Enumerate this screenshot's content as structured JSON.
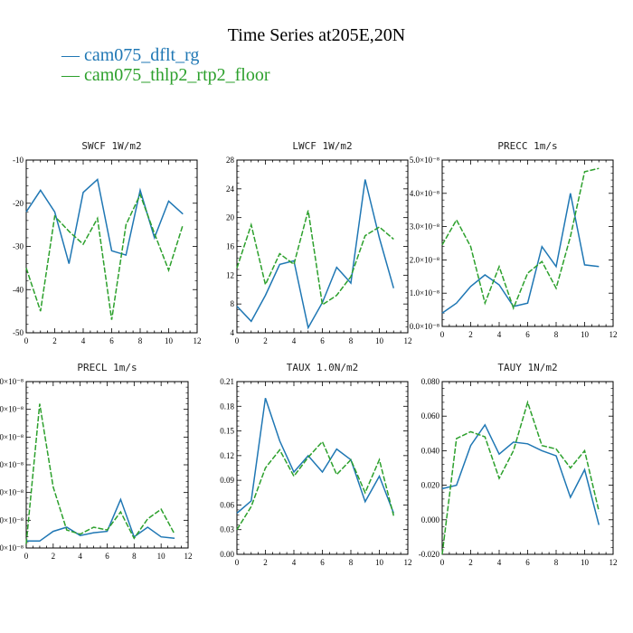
{
  "title": "Time Series at205E,20N",
  "legend": [
    {
      "label": "— cam075_dflt_rg",
      "color": "#1f77b4"
    },
    {
      "label": "— cam075_thlp2_rtp2_floor",
      "color": "#2ca02c"
    }
  ],
  "chart_data": [
    {
      "type": "line",
      "title": "SWCF  1W/m2",
      "xlim": [
        0,
        12
      ],
      "ylim": [
        -50,
        -10
      ],
      "xticks": [
        "0",
        "2",
        "4",
        "6",
        "8",
        "10",
        "12"
      ],
      "yticks": [
        {
          "v": -10,
          "label": "-10"
        },
        {
          "v": -20,
          "label": "-20"
        },
        {
          "v": -30,
          "label": "-30"
        },
        {
          "v": -40,
          "label": "-40"
        },
        {
          "v": -50,
          "label": "-50"
        }
      ],
      "x": [
        0,
        1,
        2,
        3,
        4,
        5,
        6,
        7,
        8,
        9,
        10,
        11
      ],
      "series": [
        {
          "name": "cam075_dflt_rg",
          "values": [
            -22,
            -17,
            -22,
            -34,
            -17.5,
            -14.5,
            -31,
            -32,
            -17,
            -28,
            -19.5,
            -22.5
          ]
        },
        {
          "name": "cam075_thlp2_rtp2_floor",
          "values": [
            -35,
            -45,
            -23,
            -26.5,
            -29.5,
            -23.5,
            -47,
            -25,
            -18,
            -27,
            -35.5,
            -25
          ]
        }
      ]
    },
    {
      "type": "line",
      "title": "LWCF  1W/m2",
      "xlim": [
        0,
        12
      ],
      "ylim": [
        4,
        28
      ],
      "xticks": [
        "0",
        "2",
        "4",
        "6",
        "8",
        "10",
        "12"
      ],
      "yticks": [
        {
          "v": 4,
          "label": "4"
        },
        {
          "v": 8,
          "label": "8"
        },
        {
          "v": 12,
          "label": "12"
        },
        {
          "v": 16,
          "label": "16"
        },
        {
          "v": 20,
          "label": "20"
        },
        {
          "v": 24,
          "label": "24"
        },
        {
          "v": 28,
          "label": "28"
        }
      ],
      "x": [
        0,
        1,
        2,
        3,
        4,
        5,
        6,
        7,
        8,
        9,
        10,
        11
      ],
      "series": [
        {
          "name": "cam075_dflt_rg",
          "values": [
            7.7,
            5.6,
            9.2,
            13.5,
            14,
            4.7,
            8.2,
            13.1,
            10.9,
            25.3,
            17.2,
            10.2
          ]
        },
        {
          "name": "cam075_thlp2_rtp2_floor",
          "values": [
            13,
            19,
            10.7,
            15,
            13.5,
            21,
            7.9,
            9.2,
            11.8,
            17.5,
            18.7,
            17
          ]
        }
      ]
    },
    {
      "type": "line",
      "title": "PRECC  1m/s",
      "xlim": [
        0,
        12
      ],
      "ylim": [
        0,
        5
      ],
      "xticks": [
        "0",
        "2",
        "4",
        "6",
        "8",
        "10",
        "12"
      ],
      "yticks": [
        {
          "v": 0,
          "label": "0.0×10⁻⁸"
        },
        {
          "v": 1,
          "label": "1.0×10⁻⁸"
        },
        {
          "v": 2,
          "label": "2.0×10⁻⁸"
        },
        {
          "v": 3,
          "label": "3.0×10⁻⁸"
        },
        {
          "v": 4,
          "label": "4.0×10⁻⁸"
        },
        {
          "v": 5,
          "label": "5.0×10⁻⁸"
        }
      ],
      "x": [
        0,
        1,
        2,
        3,
        4,
        5,
        6,
        7,
        8,
        9,
        10,
        11
      ],
      "series": [
        {
          "name": "cam075_dflt_rg",
          "values": [
            0.4,
            0.7,
            1.2,
            1.55,
            1.25,
            0.6,
            0.7,
            2.4,
            1.8,
            4,
            1.85,
            1.8
          ]
        },
        {
          "name": "cam075_thlp2_rtp2_floor",
          "values": [
            2.45,
            3.2,
            2.4,
            0.7,
            1.8,
            0.55,
            1.6,
            1.95,
            1.15,
            2.7,
            4.65,
            4.75
          ]
        }
      ]
    },
    {
      "type": "line",
      "title": "PRECL  1m/s",
      "xlim": [
        0,
        12
      ],
      "ylim": [
        0,
        6
      ],
      "xticks": [
        "0",
        "2",
        "4",
        "6",
        "8",
        "10",
        "12"
      ],
      "yticks": [
        {
          "v": 0,
          "label": "0×10⁻⁸"
        },
        {
          "v": 1,
          "label": "0×10⁻⁸"
        },
        {
          "v": 2,
          "label": "0×10⁻⁸"
        },
        {
          "v": 3,
          "label": "0×10⁻⁸"
        },
        {
          "v": 4,
          "label": "0×10⁻⁸"
        },
        {
          "v": 5,
          "label": "0×10⁻⁸"
        },
        {
          "v": 6,
          "label": "0×10⁻⁸"
        }
      ],
      "x": [
        0,
        1,
        2,
        3,
        4,
        5,
        6,
        7,
        8,
        9,
        10,
        11
      ],
      "series": [
        {
          "name": "cam075_dflt_rg",
          "values": [
            0.25,
            0.25,
            0.6,
            0.75,
            0.45,
            0.55,
            0.6,
            1.75,
            0.4,
            0.75,
            0.4,
            0.35
          ]
        },
        {
          "name": "cam075_thlp2_rtp2_floor",
          "values": [
            0.15,
            5.2,
            2.2,
            0.65,
            0.5,
            0.75,
            0.65,
            1.3,
            0.35,
            1.05,
            1.4,
            0.5
          ]
        }
      ]
    },
    {
      "type": "line",
      "title": "TAUX  1.0N/m2",
      "xlim": [
        0,
        12
      ],
      "ylim": [
        0,
        0.21
      ],
      "xticks": [
        "0",
        "2",
        "4",
        "6",
        "8",
        "10",
        "12"
      ],
      "yticks": [
        {
          "v": 0,
          "label": "0.00"
        },
        {
          "v": 0.03,
          "label": "0.03"
        },
        {
          "v": 0.06,
          "label": "0.06"
        },
        {
          "v": 0.09,
          "label": "0.09"
        },
        {
          "v": 0.12,
          "label": "0.12"
        },
        {
          "v": 0.15,
          "label": "0.15"
        },
        {
          "v": 0.18,
          "label": "0.18"
        },
        {
          "v": 0.21,
          "label": "0.21"
        }
      ],
      "x": [
        0,
        1,
        2,
        3,
        4,
        5,
        6,
        7,
        8,
        9,
        10,
        11
      ],
      "series": [
        {
          "name": "cam075_dflt_rg",
          "values": [
            0.05,
            0.065,
            0.19,
            0.138,
            0.1,
            0.12,
            0.1,
            0.128,
            0.115,
            0.064,
            0.095,
            0.05
          ]
        },
        {
          "name": "cam075_thlp2_rtp2_floor",
          "values": [
            0.03,
            0.058,
            0.105,
            0.127,
            0.095,
            0.118,
            0.137,
            0.097,
            0.115,
            0.075,
            0.115,
            0.047
          ]
        }
      ]
    },
    {
      "type": "line",
      "title": "TAUY  1N/m2",
      "xlim": [
        0,
        12
      ],
      "ylim": [
        -0.02,
        0.08
      ],
      "xticks": [
        "0",
        "2",
        "4",
        "6",
        "8",
        "10",
        "12"
      ],
      "yticks": [
        {
          "v": -0.02,
          "label": "-0.020"
        },
        {
          "v": 0,
          "label": "0.000"
        },
        {
          "v": 0.02,
          "label": "0.020"
        },
        {
          "v": 0.04,
          "label": "0.040"
        },
        {
          "v": 0.06,
          "label": "0.060"
        },
        {
          "v": 0.08,
          "label": "0.080"
        }
      ],
      "x": [
        0,
        1,
        2,
        3,
        4,
        5,
        6,
        7,
        8,
        9,
        10,
        11
      ],
      "series": [
        {
          "name": "cam075_dflt_rg",
          "values": [
            0.018,
            0.02,
            0.043,
            0.055,
            0.038,
            0.045,
            0.044,
            0.04,
            0.037,
            0.013,
            0.029,
            -0.003
          ]
        },
        {
          "name": "cam075_thlp2_rtp2_floor",
          "values": [
            -0.02,
            0.047,
            0.051,
            0.048,
            0.024,
            0.04,
            0.068,
            0.043,
            0.041,
            0.03,
            0.04,
            0.005
          ]
        }
      ]
    }
  ]
}
